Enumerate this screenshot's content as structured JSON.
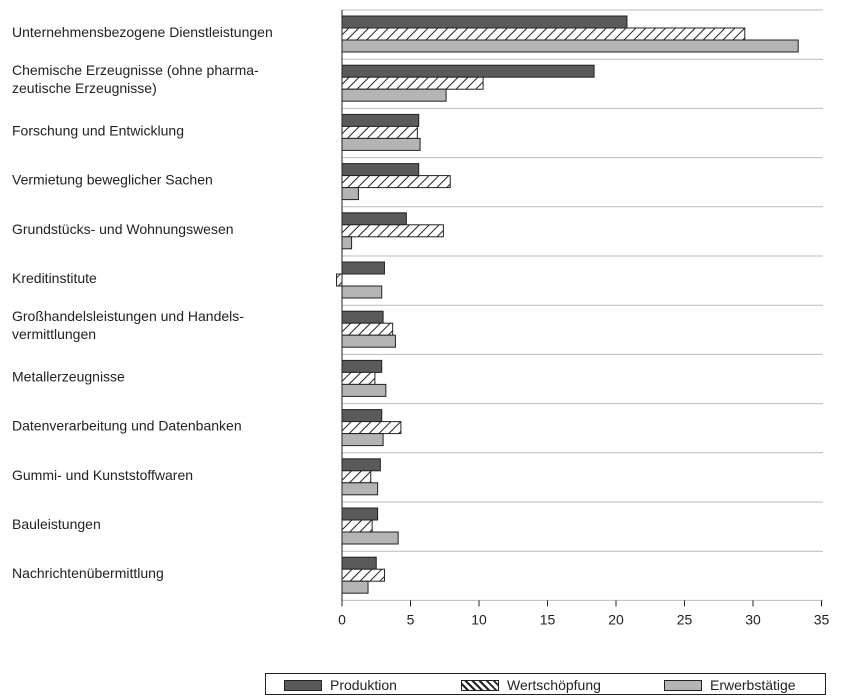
{
  "chart_data": {
    "type": "bar",
    "orientation": "horizontal",
    "categories": [
      [
        "Unternehmensbezogene Dienstleistungen"
      ],
      [
        "Chemische Erzeugnisse (ohne pharma-",
        "zeutische Erzeugnisse)"
      ],
      [
        "Forschung und Entwicklung"
      ],
      [
        "Vermietung beweglicher Sachen"
      ],
      [
        "Grundstücks- und Wohnungswesen"
      ],
      [
        "Kreditinstitute"
      ],
      [
        "Großhandelsleistungen und Handels-",
        "vermittlungen"
      ],
      [
        "Metallerzeugnisse"
      ],
      [
        "Datenverarbeitung und Datenbanken"
      ],
      [
        "Gummi- und Kunststoffwaren"
      ],
      [
        "Bauleistungen"
      ],
      [
        "Nachrichtenübermittlung"
      ]
    ],
    "series": [
      {
        "name": "Produktion",
        "fill": "dark",
        "color": "#5a5a5a",
        "values": [
          20.8,
          18.4,
          5.6,
          5.6,
          4.7,
          3.1,
          3.0,
          2.9,
          2.9,
          2.8,
          2.6,
          2.5
        ]
      },
      {
        "name": "Wertschöpfung",
        "fill": "hatch",
        "color": "#ffffff",
        "values": [
          29.4,
          10.3,
          5.5,
          7.9,
          7.4,
          -0.4,
          3.7,
          2.4,
          4.3,
          2.1,
          2.2,
          3.1
        ]
      },
      {
        "name": "Erwerbstätige",
        "fill": "light",
        "color": "#b4b4b4",
        "values": [
          33.3,
          7.6,
          5.7,
          1.2,
          0.7,
          2.9,
          3.9,
          3.2,
          3.0,
          2.6,
          4.1,
          1.9
        ]
      }
    ],
    "xlim": [
      0,
      35
    ],
    "xticks": [
      "0",
      "5",
      "10",
      "15",
      "20",
      "25",
      "30",
      "35"
    ],
    "grid": "horizontal separators",
    "legend_position": "bottom"
  }
}
